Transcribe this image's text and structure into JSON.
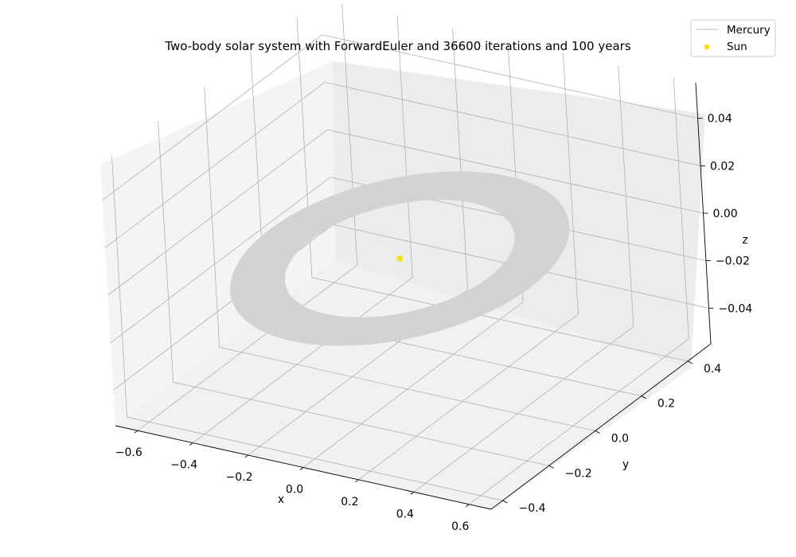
{
  "chart_data": {
    "type": "line",
    "projection": "3d",
    "title": "Two-body solar system with ForwardEuler and 36600 iterations and 100 years",
    "xlabel": "x",
    "ylabel": "y",
    "zlabel": "z",
    "x_ticks": [
      "−0.6",
      "−0.4",
      "−0.2",
      "0.0",
      "0.2",
      "0.4",
      "0.6"
    ],
    "y_ticks": [
      "−0.4",
      "−0.2",
      "0.0",
      "0.2",
      "0.4"
    ],
    "z_ticks": [
      "−0.04",
      "−0.02",
      "0.00",
      "0.02",
      "0.04"
    ],
    "xlim": [
      -0.68,
      0.68
    ],
    "ylim": [
      -0.45,
      0.5
    ],
    "zlim": [
      -0.055,
      0.055
    ],
    "grid": true,
    "legend_position": "top-right",
    "series": [
      {
        "name": "Mercury",
        "kind": "line",
        "color": "#d3d3d3",
        "orbit_band": {
          "inner_radius": 0.32,
          "outer_radius": 0.47,
          "center": [
            0.0,
            0.0,
            0.0
          ]
        }
      },
      {
        "name": "Sun",
        "kind": "scatter",
        "color": "#f5e21c",
        "points": [
          [
            0.0,
            0.0,
            0.0
          ]
        ]
      }
    ]
  }
}
